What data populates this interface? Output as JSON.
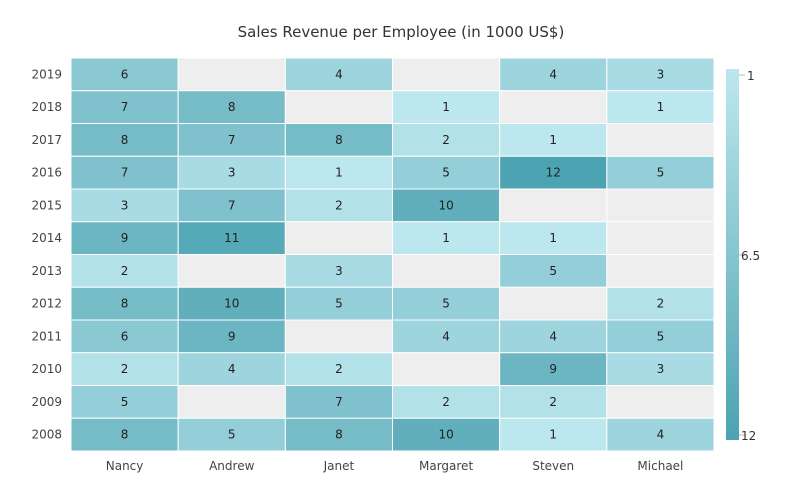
{
  "chart_data": {
    "type": "heatmap",
    "title": "Sales Revenue per Employee (in 1000 US$)",
    "x_categories": [
      "Nancy",
      "Andrew",
      "Janet",
      "Margaret",
      "Steven",
      "Michael"
    ],
    "y_categories": [
      "2019",
      "2018",
      "2017",
      "2016",
      "2015",
      "2014",
      "2013",
      "2012",
      "2011",
      "2010",
      "2009",
      "2008"
    ],
    "values": [
      [
        6,
        null,
        4,
        null,
        4,
        3
      ],
      [
        7,
        8,
        null,
        1,
        null,
        1
      ],
      [
        8,
        7,
        8,
        2,
        1,
        null
      ],
      [
        7,
        3,
        1,
        5,
        12,
        5
      ],
      [
        3,
        7,
        2,
        10,
        null,
        null
      ],
      [
        9,
        11,
        null,
        1,
        1,
        null
      ],
      [
        2,
        null,
        3,
        null,
        5,
        null
      ],
      [
        8,
        10,
        5,
        5,
        null,
        2
      ],
      [
        6,
        9,
        null,
        4,
        4,
        5
      ],
      [
        2,
        4,
        2,
        null,
        9,
        3
      ],
      [
        5,
        null,
        7,
        2,
        2,
        null
      ],
      [
        8,
        5,
        8,
        10,
        1,
        4
      ]
    ],
    "color_scale": {
      "min": 1,
      "mid": 6.5,
      "max": 12,
      "min_color": "#BDE7EE",
      "max_color": "#4CA3B1",
      "empty_color": "#EEEEEE"
    },
    "legend": {
      "position": "right",
      "labels": [
        "1",
        "6.5",
        "12"
      ]
    }
  }
}
